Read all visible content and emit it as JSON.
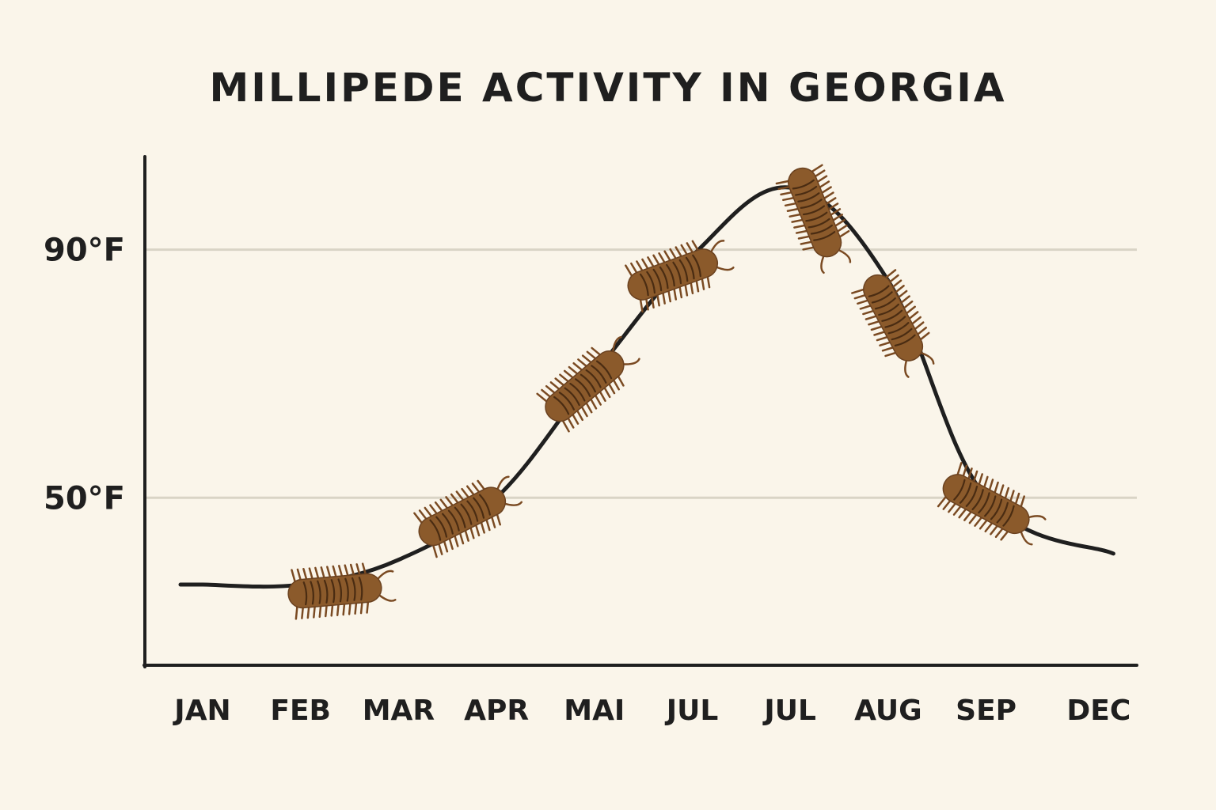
{
  "chart_data": {
    "type": "line",
    "title": "MILLIPEDE ACTIVITY IN GEORGIA",
    "xlabel": "",
    "ylabel": "",
    "categories": [
      "JAN",
      "FEB",
      "MAR",
      "APR",
      "MAI",
      "JUL",
      "JUL",
      "AUG",
      "SEP",
      "DEC"
    ],
    "y_ticks": [
      {
        "value": 50,
        "label": "50°F"
      },
      {
        "value": 90,
        "label": "90°F"
      }
    ],
    "ylim": [
      23,
      105
    ],
    "grid": "horizontal lines at labeled ticks",
    "legend": "none",
    "series": [
      {
        "x": [
          0,
          1,
          2,
          3,
          4,
          5,
          6,
          7,
          8,
          9.3
        ],
        "y": [
          36,
          36,
          40,
          50,
          70,
          89,
          100,
          85,
          50,
          41
        ],
        "values": [
          36,
          36,
          40,
          50,
          70,
          89,
          100,
          85,
          50,
          41
        ]
      }
    ],
    "millipedes": [
      {
        "x": 1.35,
        "y": 35,
        "angle": -5
      },
      {
        "x": 2.65,
        "y": 47,
        "angle": -27
      },
      {
        "x": 3.9,
        "y": 68,
        "angle": -40
      },
      {
        "x": 4.8,
        "y": 86,
        "angle": -20
      },
      {
        "x": 6.25,
        "y": 96,
        "angle": 68
      },
      {
        "x": 7.05,
        "y": 79,
        "angle": 62
      },
      {
        "x": 8.0,
        "y": 49,
        "angle": 28
      }
    ],
    "colors": {
      "background": "#faf5ea",
      "line": "#1f1f1f",
      "grid": "#d9d4c6",
      "millipede_body": "#8b5a2b",
      "millipede_dark": "#4a2c12",
      "millipede_leg": "#7a4a22"
    }
  }
}
